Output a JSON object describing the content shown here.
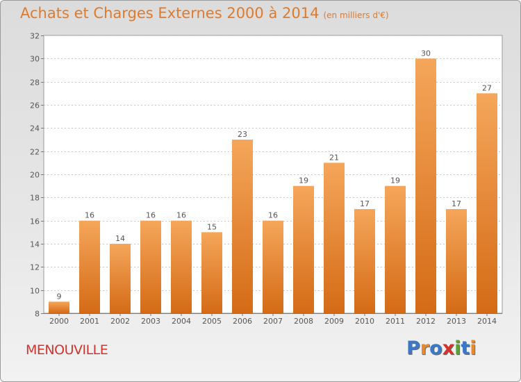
{
  "title": "Achats et Charges Externes 2000 à 2014",
  "unit_note": "(en milliers d'€)",
  "commune": "MENOUVILLE",
  "logo": {
    "letters": [
      "P",
      "r",
      "o",
      "x",
      "i",
      "t",
      "i"
    ],
    "colors": [
      "#3b79c6",
      "#e8892b",
      "#3b79c6",
      "#d2332c",
      "#5aa13a",
      "#3b79c6",
      "#e8892b"
    ]
  },
  "colors": {
    "bar_top": "#f5a65a",
    "bar_bottom": "#d46b16",
    "title": "#e07a2b",
    "commune": "#d2332c"
  },
  "chart_data": {
    "type": "bar",
    "title": "Achats et Charges Externes 2000 à 2014",
    "subtitle": "(en milliers d'€)",
    "xlabel": "",
    "ylabel": "",
    "ylim": [
      8,
      32
    ],
    "yticks": [
      8,
      10,
      12,
      14,
      16,
      18,
      20,
      22,
      24,
      26,
      28,
      30,
      32
    ],
    "grid": true,
    "categories": [
      "2000",
      "2001",
      "2002",
      "2003",
      "2004",
      "2005",
      "2006",
      "2007",
      "2008",
      "2009",
      "2010",
      "2011",
      "2012",
      "2013",
      "2014"
    ],
    "values": [
      9,
      16,
      14,
      16,
      16,
      15,
      23,
      16,
      19,
      21,
      17,
      19,
      30,
      17,
      27
    ]
  }
}
